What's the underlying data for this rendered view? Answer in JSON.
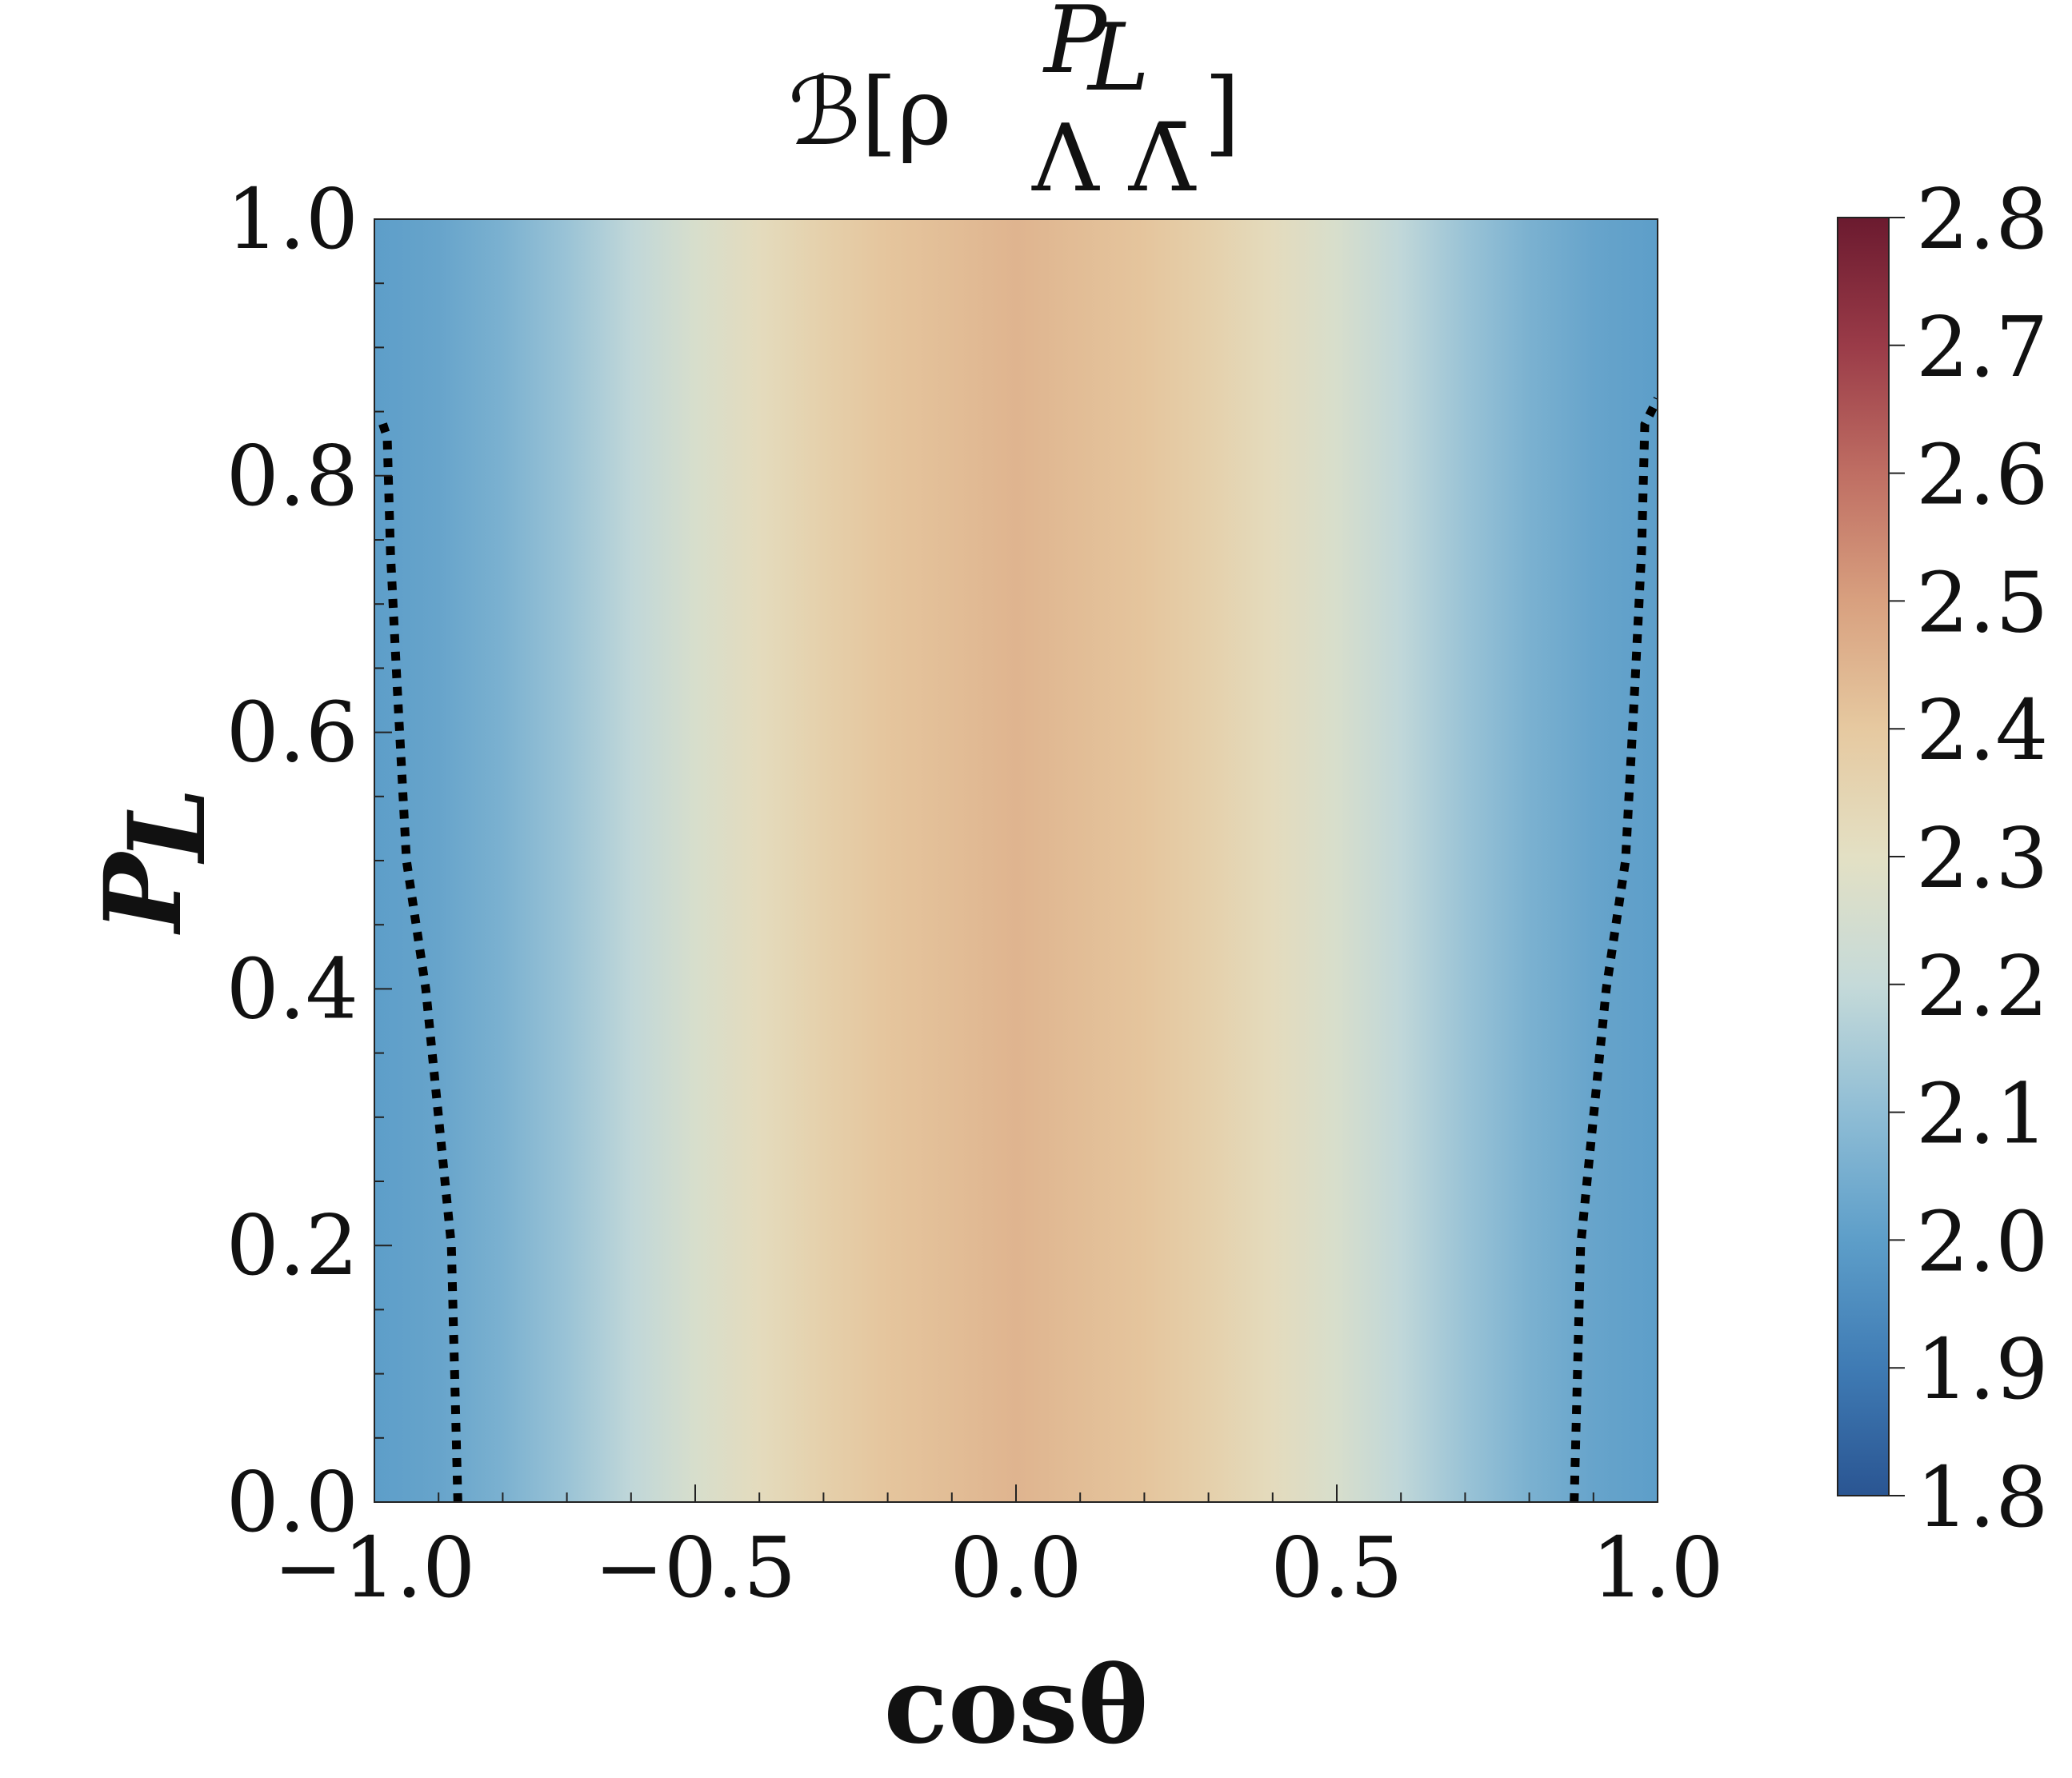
{
  "chart_data": {
    "type": "heatmap",
    "title": "ℬ[ρ",
    "title_superscript": "P",
    "title_superscript_subscript": "L",
    "title_subscript": "Λ Λ̄",
    "title_close": "]",
    "xlabel": "cosθ",
    "ylabel": "P",
    "ylabel_subscript": "L",
    "xlim": [
      -1.0,
      1.0
    ],
    "ylim": [
      0.0,
      1.0
    ],
    "x_ticks": [
      "−1.0",
      "−0.5",
      "0.0",
      "0.5",
      "1.0"
    ],
    "x_tick_values": [
      -1.0,
      -0.5,
      0.0,
      0.5,
      1.0
    ],
    "y_ticks": [
      "0.0",
      "0.2",
      "0.4",
      "0.6",
      "0.8",
      "1.0"
    ],
    "y_tick_values": [
      0.0,
      0.2,
      0.4,
      0.6,
      0.8,
      1.0
    ],
    "colorbar": {
      "colormap": "RdYlBu_r (muted)",
      "range": [
        1.8,
        2.8
      ],
      "ticks": [
        "1.8",
        "1.9",
        "2.0",
        "2.1",
        "2.2",
        "2.3",
        "2.4",
        "2.5",
        "2.6",
        "2.7",
        "2.8"
      ],
      "tick_values": [
        1.8,
        1.9,
        2.0,
        2.1,
        2.2,
        2.3,
        2.4,
        2.5,
        2.6,
        2.7,
        2.8
      ],
      "colors": [
        "#2a5592",
        "#3f7bb4",
        "#5d9ec9",
        "#8fbdd5",
        "#c5dad9",
        "#e3e0c4",
        "#e6c9a0",
        "#d8a07f",
        "#bf6e63",
        "#9a3b48",
        "#6b1a2f"
      ]
    },
    "field_description": "B(cosθ, P_L): approx. 2.0 at cosθ = ±1, rising to about 2.45 at cosθ = 0, with a slight increase toward 2.5 at the top center",
    "field_profile_by_cos": {
      "cos": [
        0.0,
        0.1,
        0.2,
        0.3,
        0.4,
        0.5,
        0.6,
        0.7,
        0.8,
        0.9,
        1.0
      ],
      "value_at_PL0": [
        2.45,
        2.43,
        2.41,
        2.37,
        2.32,
        2.26,
        2.19,
        2.12,
        2.06,
        2.02,
        2.0
      ]
    },
    "center_peak_gain": 0.07,
    "boundary_series": [
      {
        "name": "boundary-left",
        "style": "dotted",
        "color": "#000000",
        "x": [
          -0.87,
          -0.875,
          -0.88,
          -0.9,
          -0.92,
          -0.95,
          -0.965,
          -0.975,
          -0.98,
          -0.99
        ],
        "y": [
          0.0,
          0.1,
          0.2,
          0.3,
          0.4,
          0.5,
          0.64,
          0.74,
          0.83,
          0.845
        ]
      },
      {
        "name": "boundary-right",
        "style": "dotted",
        "color": "#000000",
        "x": [
          0.87,
          0.875,
          0.88,
          0.9,
          0.92,
          0.95,
          0.965,
          0.975,
          0.98,
          1.0
        ],
        "y": [
          0.0,
          0.1,
          0.2,
          0.3,
          0.4,
          0.5,
          0.64,
          0.74,
          0.84,
          0.86
        ]
      }
    ]
  }
}
